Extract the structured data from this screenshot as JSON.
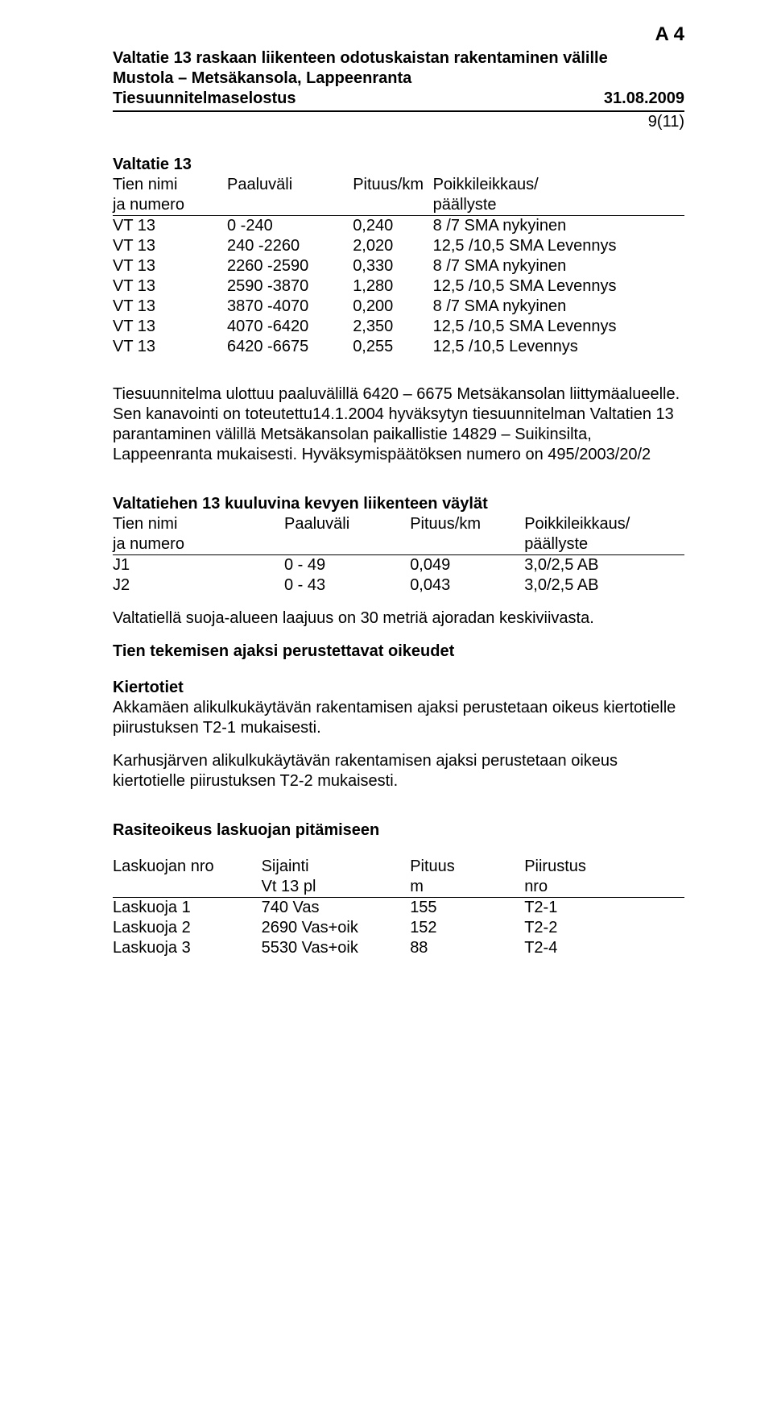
{
  "top_id": "A 4",
  "header": {
    "title_line1": "Valtatie 13 raskaan liikenteen odotuskaistan rakentaminen välille",
    "title_line2": "Mustola – Metsäkansola, Lappeenranta",
    "doc_type": "Tiesuunnitelmaselostus",
    "date": "31.08.2009",
    "page": "9(11)"
  },
  "colors": {
    "text": "#000000",
    "bg": "#ffffff",
    "rule": "#000000"
  },
  "valtatie13": {
    "heading": "Valtatie 13",
    "columns_line1": {
      "c1": "Tien nimi",
      "c2": "Paaluväli",
      "c3": "Pituus/km",
      "c4": "Poikkileikkaus/"
    },
    "columns_line2": {
      "c1": "ja numero",
      "c2": "",
      "c3": "",
      "c4": "päällyste"
    },
    "rows": [
      {
        "name": "VT 13",
        "range": "0 -240",
        "len": "0,240",
        "desc": "8 /7 SMA nykyinen"
      },
      {
        "name": "VT 13",
        "range": "240 -2260",
        "len": "2,020",
        "desc": "12,5 /10,5 SMA Levennys"
      },
      {
        "name": "VT 13",
        "range": "2260 -2590",
        "len": "0,330",
        "desc": "8 /7 SMA nykyinen"
      },
      {
        "name": "VT 13",
        "range": "2590 -3870",
        "len": "1,280",
        "desc": "12,5 /10,5 SMA Levennys"
      },
      {
        "name": "VT 13",
        "range": "3870 -4070",
        "len": "0,200",
        "desc": "8 /7 SMA nykyinen"
      },
      {
        "name": "VT 13",
        "range": "4070 -6420",
        "len": "2,350",
        "desc": "12,5 /10,5 SMA Levennys"
      },
      {
        "name": "VT 13",
        "range": "6420 -6675",
        "len": "0,255",
        "desc": "12,5 /10,5 Levennys"
      }
    ]
  },
  "paragraph1": "Tiesuunnitelma ulottuu paaluvälillä 6420 – 6675 Metsäkansolan liittymäalueelle. Sen kanavointi on toteutettu14.1.2004 hyväksytyn tiesuunnitelman Valtatien 13 parantaminen välillä Metsäkansolan paikallistie 14829 – Suikinsilta, Lappeenranta mukaisesti. Hyväksymispäätöksen numero on 495/2003/20/2",
  "kevyen": {
    "heading": "Valtatiehen 13 kuuluvina kevyen liikenteen väylät",
    "columns_line1": {
      "c1": "Tien nimi",
      "c2": "Paaluväli",
      "c3": "Pituus/km",
      "c4": "Poikkileikkaus/"
    },
    "columns_line2": {
      "c1": "ja numero",
      "c2": "",
      "c3": "",
      "c4": "päällyste"
    },
    "rows": [
      {
        "name": "J1",
        "range": "0 -   49",
        "len": "0,049",
        "desc": "3,0/2,5 AB"
      },
      {
        "name": "J2",
        "range": "0 -   43",
        "len": "0,043",
        "desc": "3,0/2,5 AB"
      }
    ]
  },
  "suoja_alue": "Valtatiellä suoja-alueen laajuus on 30 metriä ajoradan keskiviivasta.",
  "tien_tekemisen_heading": "Tien tekemisen ajaksi perustettavat oikeudet",
  "kiertotiet": {
    "heading": "Kiertotiet",
    "para1": "Akkamäen alikulkukäytävän rakentamisen ajaksi perustetaan oikeus kiertotielle piirustuksen T2-1 mukaisesti.",
    "para2": "Karhusjärven alikulkukäytävän rakentamisen ajaksi perustetaan oikeus kiertotielle piirustuksen T2-2 mukaisesti."
  },
  "rasite": {
    "heading": "Rasiteoikeus laskuojan pitämiseen",
    "columns_line1": {
      "c1": "Laskuojan nro",
      "c2": "Sijainti",
      "c3": "Pituus",
      "c4": "Piirustus"
    },
    "columns_line2": {
      "c1": "",
      "c2": "Vt 13 pl",
      "c3": "m",
      "c4": "nro"
    },
    "rows": [
      {
        "c1": "Laskuoja 1",
        "c2": "740 Vas",
        "c3": "155",
        "c4": "T2-1"
      },
      {
        "c1": "Laskuoja 2",
        "c2": "2690 Vas+oik",
        "c3": "152",
        "c4": "T2-2"
      },
      {
        "c1": "Laskuoja 3",
        "c2": "5530 Vas+oik",
        "c3": "88",
        "c4": "T2-4"
      }
    ]
  }
}
